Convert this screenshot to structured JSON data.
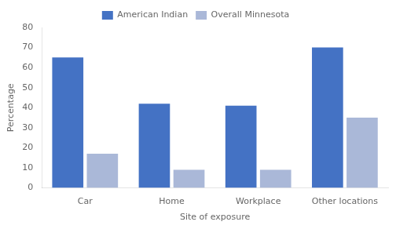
{
  "chart_data": {
    "type": "bar",
    "xlabel": "Site of exposure",
    "ylabel": "Percentage",
    "categories": [
      "Car",
      "Home",
      "Workplace",
      "Other locations"
    ],
    "series": [
      {
        "name": "American Indian",
        "color": "#4472c4",
        "values": [
          65,
          42,
          41,
          70
        ]
      },
      {
        "name": "Overall Minnesota",
        "color": "#aab8d8",
        "values": [
          17,
          9,
          9,
          35
        ]
      }
    ],
    "ylim": [
      0,
      80
    ],
    "yticks": [
      0,
      10,
      20,
      30,
      40,
      50,
      60,
      70,
      80
    ],
    "grid": false,
    "legend": "top"
  }
}
